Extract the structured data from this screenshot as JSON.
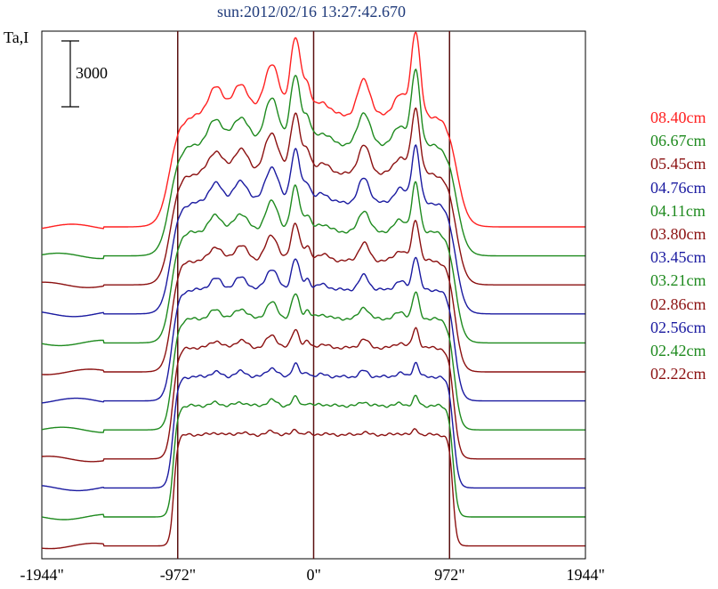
{
  "chart_data": {
    "type": "line",
    "title": "sun:2012/02/16 13:27:42.670",
    "ylabel": "Ta,I",
    "scale_bar_label": "3000",
    "x_ticks": [
      "-1944\"",
      "-972\"",
      "0\"",
      "972\"",
      "1944\""
    ],
    "x_tick_values": [
      -1944,
      -972,
      0,
      972,
      1944
    ],
    "xlim": [
      -1944,
      1944
    ],
    "vertical_lines": [
      -972,
      0,
      972
    ],
    "grid": false,
    "legend_position": "right",
    "series": [
      {
        "name": "08.40cm",
        "color": "#ff2020"
      },
      {
        "name": "06.67cm",
        "color": "#1e8a1e"
      },
      {
        "name": "05.45cm",
        "color": "#8b1010"
      },
      {
        "name": "04.76cm",
        "color": "#1a1aa0"
      },
      {
        "name": "04.11cm",
        "color": "#1e8a1e"
      },
      {
        "name": "03.80cm",
        "color": "#8b1010"
      },
      {
        "name": "03.45cm",
        "color": "#1a1aa0"
      },
      {
        "name": "03.21cm",
        "color": "#1e8a1e"
      },
      {
        "name": "02.86cm",
        "color": "#8b1010"
      },
      {
        "name": "02.56cm",
        "color": "#1a1aa0"
      },
      {
        "name": "02.42cm",
        "color": "#1e8a1e"
      },
      {
        "name": "02.22cm",
        "color": "#8b1010"
      }
    ]
  }
}
